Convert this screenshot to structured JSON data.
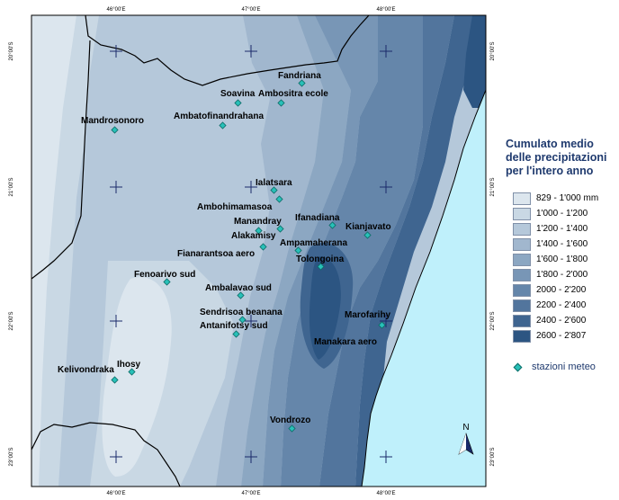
{
  "map": {
    "grid_labels": {
      "top": [
        "46°00'E",
        "47°00'E",
        "48°00'E"
      ],
      "bottom": [
        "46°00'E",
        "47°00'E",
        "48°00'E"
      ],
      "left": [
        "20°00'S",
        "21°00'S",
        "22°00'S",
        "23°00'S"
      ],
      "right": [
        "20°00'S",
        "21°00'S",
        "22°00'S",
        "23°00'S"
      ]
    },
    "north_arrow_label": "N",
    "stations": [
      "Fandriana",
      "Soavina",
      "Ambositra ecole",
      "Mandrosonoro",
      "Ambatofinandrahana",
      "Ialatsara",
      "Ambohimamasoa",
      "Ifanadiana",
      "Manandray",
      "Kianjavato",
      "Alakamisy",
      "Ampamaherana",
      "Fianarantsoa aero",
      "Tolongoina",
      "Fenoarivo sud",
      "Ambalavao sud",
      "Sendrisoa beanana",
      "Marofarihy",
      "Antanifotsy sud",
      "Manakara aero",
      "Ihosy",
      "Kelivondraka",
      "Vondrozo"
    ]
  },
  "legend": {
    "title_lines": [
      "Cumulato medio",
      "delle precipitazioni",
      "per l'intero anno"
    ],
    "classes": [
      {
        "label": "829 - 1'000 mm",
        "color": "#dce6ee"
      },
      {
        "label": "1'000 - 1'200",
        "color": "#c9d8e4"
      },
      {
        "label": "1'200 - 1'400",
        "color": "#b5c8da"
      },
      {
        "label": "1'400 - 1'600",
        "color": "#a1b7ce"
      },
      {
        "label": "1'600 - 1'800",
        "color": "#8ca7c2"
      },
      {
        "label": "1'800 - 2'000",
        "color": "#7896b6"
      },
      {
        "label": "2000 - 2'200",
        "color": "#6586aa"
      },
      {
        "label": "2200 - 2'400",
        "color": "#52759d"
      },
      {
        "label": "2400 - 2'600",
        "color": "#3f6590"
      },
      {
        "label": "2600 - 2'807",
        "color": "#2c5582"
      }
    ],
    "station_label": "stazioni meteo",
    "station_color": "#28c0b8",
    "ocean_color": "#bff0fb"
  }
}
